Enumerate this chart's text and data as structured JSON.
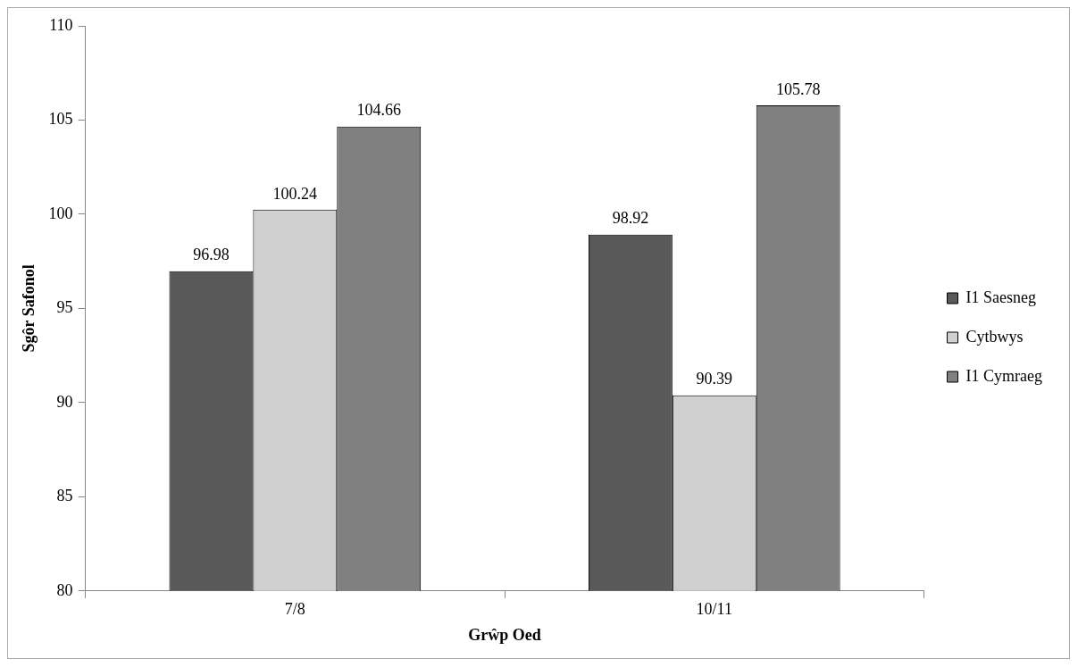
{
  "chart_data": {
    "type": "bar",
    "xlabel": "Grŵp Oed",
    "ylabel": "Sgôr Safonol",
    "categories": [
      "7/8",
      "10/11"
    ],
    "series": [
      {
        "name": "I1 Saesneg",
        "color": "#595959",
        "values": [
          96.98,
          98.92
        ]
      },
      {
        "name": "Cytbwys",
        "color": "#d0d0d0",
        "values": [
          100.24,
          90.39
        ]
      },
      {
        "name": "I1 Cymraeg",
        "color": "#808080",
        "values": [
          104.66,
          105.78
        ]
      }
    ],
    "ylim": [
      80,
      110
    ],
    "yticks": [
      80,
      85,
      90,
      95,
      100,
      105,
      110
    ],
    "data_labels": true,
    "legend": "right",
    "grid": false
  }
}
